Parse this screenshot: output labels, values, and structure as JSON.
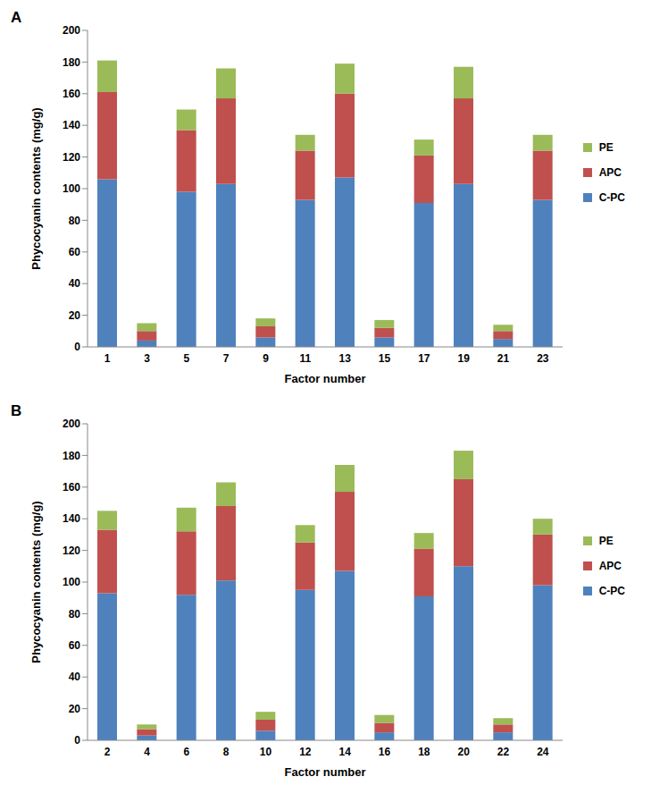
{
  "chart_data": [
    {
      "type": "bar",
      "title": "A",
      "stacked": true,
      "legend": "right",
      "grid": false,
      "x_label": "Factor number",
      "y_label": "Phycocyanin contents (mg/g)",
      "categories": [
        "1",
        "3",
        "5",
        "7",
        "9",
        "11",
        "13",
        "15",
        "17",
        "19",
        "21",
        "23"
      ],
      "ylim": [
        0,
        200
      ],
      "yticks": [
        0,
        20,
        40,
        60,
        80,
        100,
        120,
        140,
        160,
        180,
        200
      ],
      "series": [
        {
          "name": "C-PC",
          "color": "#4f81bd",
          "values": [
            106,
            4,
            98,
            103,
            6,
            93,
            107,
            6,
            91,
            103,
            5,
            93
          ]
        },
        {
          "name": "APC",
          "color": "#c0504d",
          "values": [
            55,
            6,
            39,
            54,
            7,
            31,
            53,
            6,
            30,
            54,
            5,
            31
          ]
        },
        {
          "name": "PE",
          "color": "#9bbb59",
          "values": [
            20,
            5,
            13,
            19,
            5,
            10,
            19,
            5,
            10,
            20,
            4,
            10
          ]
        }
      ]
    },
    {
      "type": "bar",
      "title": "B",
      "stacked": true,
      "legend": "right",
      "grid": false,
      "x_label": "Factor number",
      "y_label": "Phycocyanin contents (mg/g)",
      "categories": [
        "2",
        "4",
        "6",
        "8",
        "10",
        "12",
        "14",
        "16",
        "18",
        "20",
        "22",
        "24"
      ],
      "ylim": [
        0,
        200
      ],
      "yticks": [
        0,
        20,
        40,
        60,
        80,
        100,
        120,
        140,
        160,
        180,
        200
      ],
      "series": [
        {
          "name": "C-PC",
          "color": "#4f81bd",
          "values": [
            93,
            3,
            92,
            101,
            6,
            95,
            107,
            5,
            91,
            110,
            5,
            98
          ]
        },
        {
          "name": "APC",
          "color": "#c0504d",
          "values": [
            40,
            4,
            40,
            47,
            7,
            30,
            50,
            6,
            30,
            55,
            5,
            32
          ]
        },
        {
          "name": "PE",
          "color": "#9bbb59",
          "values": [
            12,
            3,
            15,
            15,
            5,
            11,
            17,
            5,
            10,
            18,
            4,
            10
          ]
        }
      ]
    }
  ]
}
